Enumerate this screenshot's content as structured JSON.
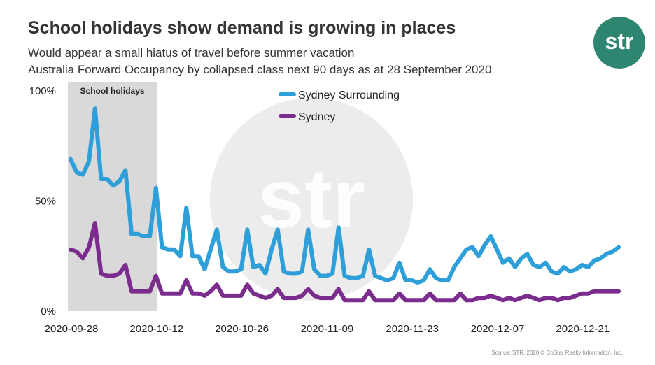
{
  "header": {
    "title": "School holidays show demand is growing in places",
    "subtitle_line1": "Would appear a small hiatus of travel before summer vacation",
    "subtitle_line2": "Australia Forward Occupancy by collapsed class next 90 days as at 28 September 2020"
  },
  "logo": {
    "text": "str",
    "color": "#2e8570"
  },
  "watermark": {
    "text": "str"
  },
  "footer": {
    "source": "Source: STR. 2020 © CoStar Realty Information, Inc."
  },
  "colors": {
    "sydney_surrounding": "#2e9fd8",
    "sydney": "#7b2d8e",
    "shade": "#d9d9d9"
  },
  "chart_data": {
    "type": "line",
    "title": "",
    "xlabel": "",
    "ylabel": "",
    "ylim": [
      0,
      100
    ],
    "y_ticks": [
      "0%",
      "50%",
      "100%"
    ],
    "x_tick_labels": [
      "2020-09-28",
      "2020-10-12",
      "2020-10-26",
      "2020-11-09",
      "2020-11-23",
      "2020-12-07",
      "2020-12-21"
    ],
    "x_start": "2020-09-28",
    "x_end": "2020-12-27",
    "legend_position": "top-center",
    "shaded_region": {
      "label": "School holidays",
      "start": "2020-09-28",
      "end": "2020-10-11"
    },
    "series": [
      {
        "name": "Sydney Surrounding",
        "color": "#2e9fd8",
        "values": [
          69,
          63,
          62,
          68,
          92,
          60,
          60,
          57,
          59,
          64,
          35,
          35,
          34,
          34,
          56,
          29,
          28,
          28,
          25,
          47,
          25,
          25,
          19,
          28,
          37,
          20,
          18,
          18,
          19,
          37,
          20,
          21,
          17,
          28,
          37,
          18,
          17,
          17,
          18,
          37,
          19,
          16,
          16,
          17,
          38,
          16,
          15,
          15,
          16,
          28,
          16,
          15,
          14,
          15,
          22,
          14,
          14,
          13,
          14,
          19,
          15,
          14,
          14,
          20,
          24,
          28,
          29,
          25,
          30,
          34,
          28,
          22,
          24,
          20,
          24,
          26,
          21,
          20,
          22,
          18,
          17,
          20,
          18,
          19,
          21,
          20,
          23,
          24,
          26,
          27,
          29
        ]
      },
      {
        "name": "Sydney",
        "color": "#7b2d8e",
        "values": [
          28,
          27,
          24,
          29,
          40,
          17,
          16,
          16,
          17,
          21,
          9,
          9,
          9,
          9,
          16,
          8,
          8,
          8,
          8,
          14,
          8,
          8,
          7,
          9,
          12,
          7,
          7,
          7,
          7,
          12,
          8,
          7,
          6,
          7,
          10,
          6,
          6,
          6,
          7,
          10,
          7,
          6,
          6,
          6,
          10,
          5,
          5,
          5,
          5,
          9,
          5,
          5,
          5,
          5,
          8,
          5,
          5,
          5,
          5,
          8,
          5,
          5,
          5,
          5,
          8,
          5,
          5,
          6,
          6,
          7,
          6,
          5,
          6,
          5,
          6,
          7,
          6,
          5,
          6,
          6,
          5,
          6,
          6,
          7,
          8,
          8,
          9,
          9,
          9,
          9,
          9
        ]
      }
    ]
  }
}
